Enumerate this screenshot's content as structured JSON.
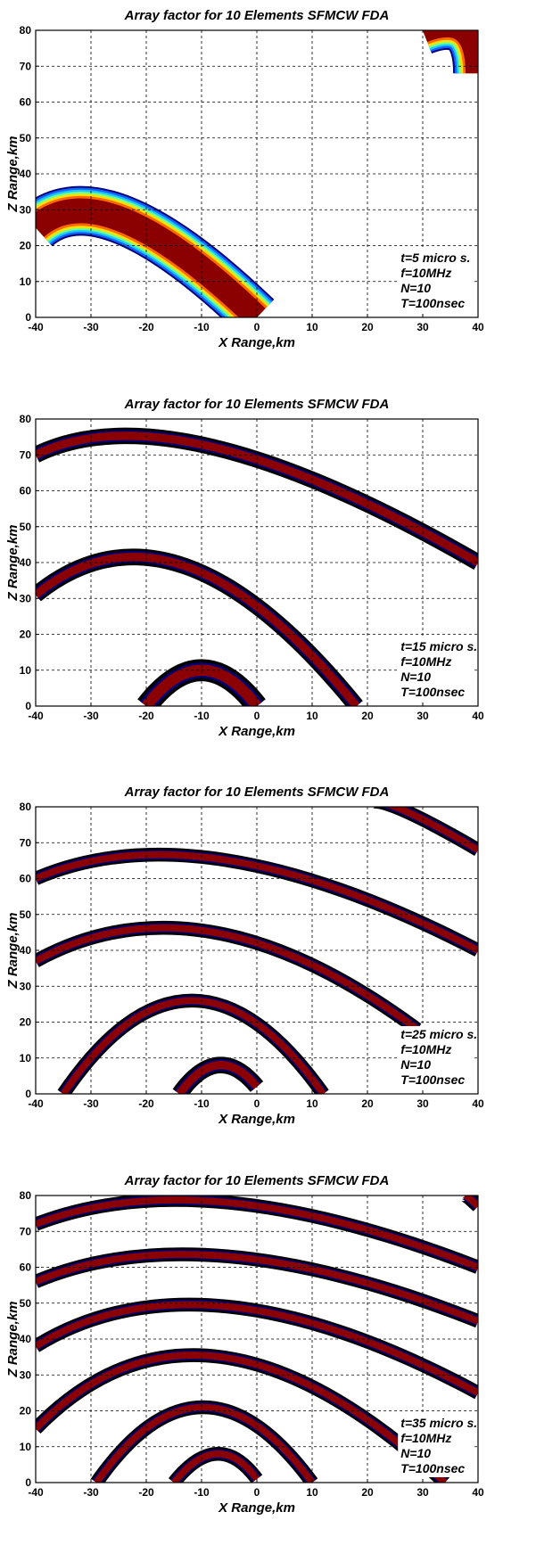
{
  "colors": {
    "ring_outer": "#00007a",
    "ring_band1": "#1560ff",
    "ring_band2": "#18c8ff",
    "ring_band3": "#70ff90",
    "ring_band4": "#ffe000",
    "ring_band5": "#ff6a00",
    "ring_core": "#8b0000",
    "ring_edge": "#000000",
    "grid": "#000000"
  },
  "chart_data": [
    {
      "type": "heatmap",
      "title": "Array factor for 10 Elements SFMCW FDA",
      "xlabel": "X Range,km",
      "ylabel": "Z Range,km",
      "xlim": [
        -40,
        40
      ],
      "ylim": [
        0,
        80
      ],
      "xticks": [
        "-40",
        "-30",
        "-20",
        "-10",
        "0",
        "10",
        "20",
        "30",
        "40"
      ],
      "yticks": [
        "0",
        "10",
        "20",
        "30",
        "40",
        "50",
        "60",
        "70",
        "80"
      ],
      "grid": true,
      "style": "banded",
      "annotation": [
        "t=5 micro s.",
        "f=10MHz",
        "N=10",
        "T=100nsec"
      ],
      "annotation_position": "bottom-right",
      "rings": [
        {
          "x_start": 0,
          "z_start": 0,
          "arc_through_x": -28,
          "arc_peak_z": 27,
          "x_end": -40,
          "z_end": 25,
          "width_km": 9
        },
        {
          "x_start": 40,
          "z_start": 68,
          "arc_through_x": 40,
          "arc_peak_z": 80,
          "x_end": 30,
          "z_end": 80,
          "width_km": 9
        }
      ]
    },
    {
      "type": "heatmap",
      "title": "Array factor for 10 Elements SFMCW FDA",
      "xlabel": "X Range,km",
      "ylabel": "Z Range,km",
      "xlim": [
        -40,
        40
      ],
      "ylim": [
        0,
        80
      ],
      "xticks": [
        "-40",
        "-30",
        "-20",
        "-10",
        "0",
        "10",
        "20",
        "30",
        "40"
      ],
      "yticks": [
        "0",
        "10",
        "20",
        "30",
        "40",
        "50",
        "60",
        "70",
        "80"
      ],
      "grid": true,
      "style": "thin",
      "annotation": [
        "t=15 micro s.",
        "f=10MHz",
        "N=10",
        "T=100nsec"
      ],
      "annotation_position": "bottom-right",
      "rings": [
        {
          "x_start": -20,
          "z_start": 0,
          "arc_through_x": -10,
          "arc_peak_z": 10,
          "x_end": 0,
          "z_end": 0,
          "width_km": 4
        },
        {
          "x_start": 18,
          "z_start": 0,
          "arc_through_x": -15,
          "arc_peak_z": 39,
          "x_end": -40,
          "z_end": 31,
          "width_km": 3
        },
        {
          "x_start": 40,
          "z_start": 40,
          "arc_through_x": -15,
          "arc_peak_z": 72,
          "x_end": -40,
          "z_end": 70,
          "width_km": 3
        }
      ]
    },
    {
      "type": "heatmap",
      "title": "Array factor for 10 Elements SFMCW FDA",
      "xlabel": "X Range,km",
      "ylabel": "Z Range,km",
      "xlim": [
        -40,
        40
      ],
      "ylim": [
        0,
        80
      ],
      "xticks": [
        "-40",
        "-30",
        "-20",
        "-10",
        "0",
        "10",
        "20",
        "30",
        "40"
      ],
      "yticks": [
        "0",
        "10",
        "20",
        "30",
        "40",
        "50",
        "60",
        "70",
        "80"
      ],
      "grid": true,
      "style": "thin",
      "annotation": [
        "t=25 micro s.",
        "f=10MHz",
        "N=10",
        "T=100nsec"
      ],
      "annotation_position": "bottom-right",
      "rings": [
        {
          "x_start": -14,
          "z_start": 0,
          "arc_through_x": -7,
          "arc_peak_z": 8,
          "x_end": 0,
          "z_end": 2,
          "width_km": 3
        },
        {
          "x_start": 12,
          "z_start": 0,
          "arc_through_x": -12,
          "arc_peak_z": 26,
          "x_end": -35,
          "z_end": 0,
          "width_km": 2.5
        },
        {
          "x_start": 29,
          "z_start": 18,
          "arc_through_x": -10,
          "arc_peak_z": 45,
          "x_end": -40,
          "z_end": 37,
          "width_km": 2.5
        },
        {
          "x_start": 40,
          "z_start": 40,
          "arc_through_x": -10,
          "arc_peak_z": 65,
          "x_end": -40,
          "z_end": 60,
          "width_km": 2.5
        },
        {
          "x_start": 40,
          "z_start": 68,
          "arc_through_x": 20,
          "arc_peak_z": 80,
          "x_end": 20,
          "z_end": 80,
          "width_km": 2.5
        }
      ]
    },
    {
      "type": "heatmap",
      "title": "Array factor for 10 Elements SFMCW FDA",
      "xlabel": "X Range,km",
      "ylabel": "Z Range,km",
      "xlim": [
        -40,
        40
      ],
      "ylim": [
        0,
        80
      ],
      "xticks": [
        "-40",
        "-30",
        "-20",
        "-10",
        "0",
        "10",
        "20",
        "30",
        "40"
      ],
      "yticks": [
        "0",
        "10",
        "20",
        "30",
        "40",
        "50",
        "60",
        "70",
        "80"
      ],
      "grid": true,
      "style": "thin",
      "annotation": [
        "t=35 micro s.",
        "f=10MHz",
        "N=10",
        "T=100nsec"
      ],
      "annotation_position": "bottom-right",
      "rings": [
        {
          "x_start": -15,
          "z_start": 0,
          "arc_through_x": -7,
          "arc_peak_z": 8,
          "x_end": 0,
          "z_end": 1,
          "width_km": 2.5
        },
        {
          "x_start": 10,
          "z_start": 0,
          "arc_through_x": -10,
          "arc_peak_z": 21,
          "x_end": -29,
          "z_end": 0,
          "width_km": 2.5
        },
        {
          "x_start": 34,
          "z_start": 0,
          "arc_through_x": -10,
          "arc_peak_z": 35,
          "x_end": -40,
          "z_end": 15,
          "width_km": 2.5
        },
        {
          "x_start": 40,
          "z_start": 25,
          "arc_through_x": -10,
          "arc_peak_z": 49,
          "x_end": -40,
          "z_end": 38,
          "width_km": 2.5
        },
        {
          "x_start": 40,
          "z_start": 45,
          "arc_through_x": -10,
          "arc_peak_z": 63,
          "x_end": -40,
          "z_end": 56,
          "width_km": 2.5
        },
        {
          "x_start": 40,
          "z_start": 60,
          "arc_through_x": -10,
          "arc_peak_z": 78,
          "x_end": -40,
          "z_end": 72,
          "width_km": 2.5
        },
        {
          "x_start": 40,
          "z_start": 77,
          "arc_through_x": 37,
          "arc_peak_z": 80,
          "x_end": 37,
          "z_end": 80,
          "width_km": 2.5
        }
      ]
    }
  ]
}
